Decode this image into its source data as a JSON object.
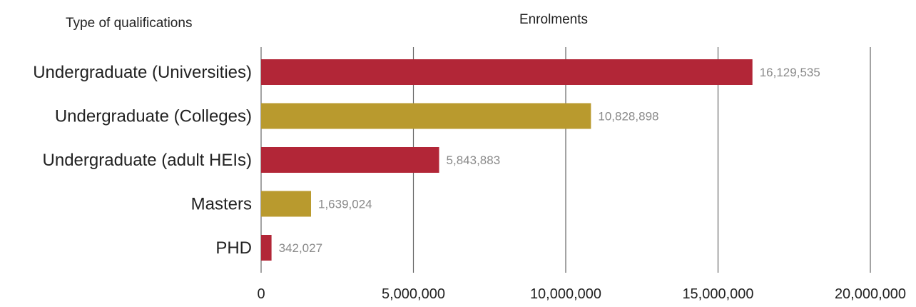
{
  "chart_data": {
    "type": "bar",
    "orientation": "horizontal",
    "y_heading": "Type of qualifications",
    "x_heading": "Enrolments",
    "categories": [
      "Undergraduate (Universities)",
      "Undergraduate (Colleges)",
      "Undergraduate (adult HEIs)",
      "Masters",
      "PHD"
    ],
    "values": [
      16129535,
      10828898,
      5843883,
      1639024,
      342027
    ],
    "data_labels": [
      "16,129,535",
      "10,828,898",
      "5,843,883",
      "1,639,024",
      "342,027"
    ],
    "bar_colors": [
      "#b22637",
      "#b99a2e",
      "#b22637",
      "#b99a2e",
      "#b22637"
    ],
    "xlim": [
      0,
      20000000
    ],
    "x_ticks": [
      0,
      5000000,
      10000000,
      15000000,
      20000000
    ],
    "x_tick_labels": [
      "0",
      "5,000,000",
      "10,000,000",
      "15,000,000",
      "20,000,000"
    ],
    "grid": true,
    "legend": "none"
  }
}
